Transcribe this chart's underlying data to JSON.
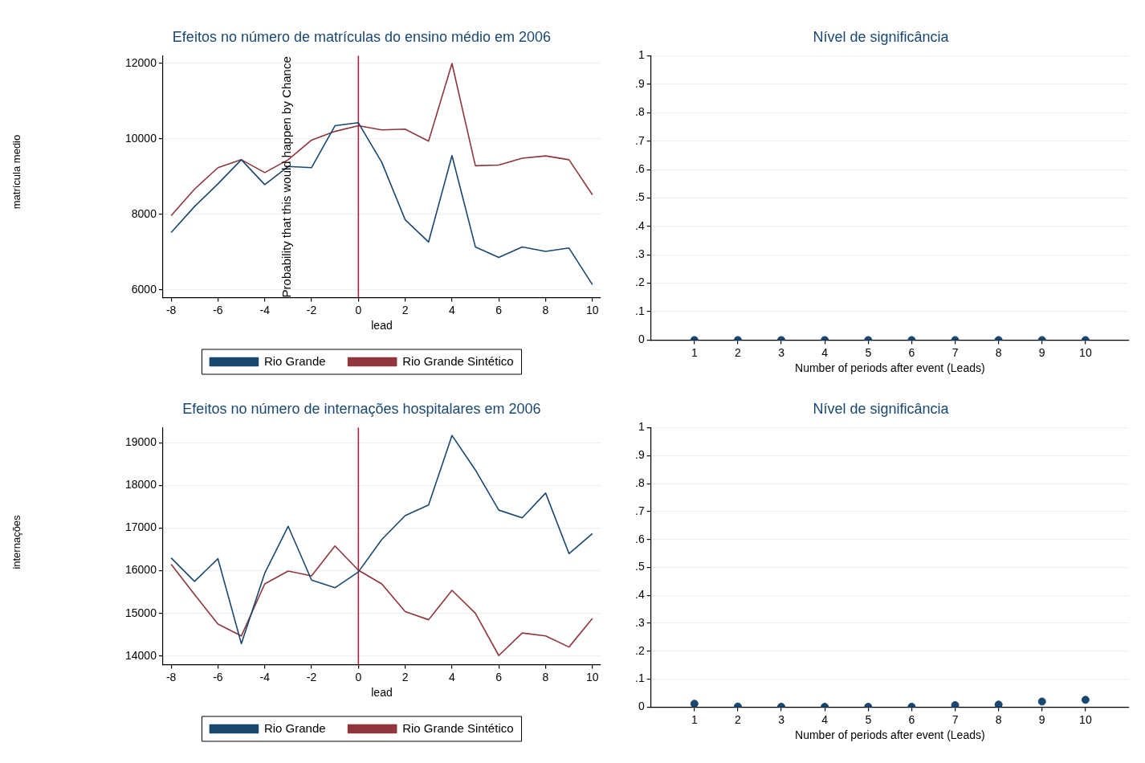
{
  "chart_data": [
    {
      "type": "line",
      "title": "Efeitos no número de matrículas do ensino médio em 2006",
      "xlabel": "lead",
      "ylabel": "matrícula medio",
      "x": [
        -8,
        -7,
        -6,
        -5,
        -4,
        -3,
        -2,
        -1,
        0,
        1,
        2,
        3,
        4,
        5,
        6,
        7,
        8,
        9,
        10
      ],
      "series": [
        {
          "name": "Rio Grande",
          "color": "#1a476f",
          "values": [
            7520,
            8210,
            8810,
            9450,
            8790,
            9270,
            9240,
            10350,
            10430,
            9380,
            7860,
            7270,
            9560,
            7140,
            6860,
            7140,
            7020,
            7110,
            6140
          ]
        },
        {
          "name": "Rio Grande Sintético",
          "color": "#90353b",
          "values": [
            7970,
            8670,
            9240,
            9450,
            9110,
            9450,
            9970,
            10200,
            10350,
            10240,
            10260,
            9940,
            12000,
            9290,
            9310,
            9490,
            9550,
            9450,
            8520
          ]
        }
      ],
      "xlim": [
        -8.35,
        10.35
      ],
      "xticks": [
        -8,
        -6,
        -4,
        -2,
        0,
        2,
        4,
        6,
        8,
        10
      ],
      "ylim": [
        5800,
        12200
      ],
      "yticks": [
        6000,
        8000,
        10000,
        12000
      ],
      "grid": "y",
      "legend": "bottom",
      "marker": "none",
      "ref_lines": [
        {
          "axis": "x",
          "value": 0,
          "color": "#c8102e"
        }
      ],
      "annotations": [
        "Probability that this would happen by Chance"
      ]
    },
    {
      "type": "scatter",
      "title": "Nível de significância",
      "xlabel": "Number of periods after event (Leads)",
      "x": [
        1,
        2,
        3,
        4,
        5,
        6,
        7,
        8,
        9,
        10
      ],
      "series": [
        {
          "color": "#1a476f",
          "values": [
            0,
            0,
            0,
            0,
            0,
            0,
            0,
            0,
            0,
            0
          ]
        }
      ],
      "xlim": [
        0,
        11
      ],
      "xticks": [
        1,
        2,
        3,
        4,
        5,
        6,
        7,
        8,
        9,
        10
      ],
      "ylim": [
        0,
        1
      ],
      "yticks": [
        {
          "value": 0,
          "label": "0"
        },
        {
          "value": 0.1,
          "label": ".1"
        },
        {
          "value": 0.2,
          "label": ".2"
        },
        {
          "value": 0.3,
          "label": ".3"
        },
        {
          "value": 0.4,
          "label": ".4"
        },
        {
          "value": 0.5,
          "label": ".5"
        },
        {
          "value": 0.6,
          "label": ".6"
        },
        {
          "value": 0.7,
          "label": ".7"
        },
        {
          "value": 0.8,
          "label": ".8"
        },
        {
          "value": 0.9,
          "label": ".9"
        },
        {
          "value": 1,
          "label": "1"
        }
      ],
      "grid": "y",
      "marker": "circle"
    },
    {
      "type": "line",
      "title": "Efeitos no número de internações hospitalares em 2006",
      "xlabel": "lead",
      "ylabel": "internações",
      "x": [
        -8,
        -7,
        -6,
        -5,
        -4,
        -3,
        -2,
        -1,
        0,
        1,
        2,
        3,
        4,
        5,
        6,
        7,
        8,
        9,
        10
      ],
      "series": [
        {
          "name": "Rio Grande",
          "color": "#1a476f",
          "values": [
            16300,
            15750,
            16280,
            14290,
            15940,
            17040,
            15780,
            15600,
            15970,
            16730,
            17290,
            17540,
            19170,
            18360,
            17420,
            17240,
            17820,
            16400,
            16870
          ]
        },
        {
          "name": "Rio Grande Sintético",
          "color": "#90353b",
          "values": [
            16150,
            15440,
            14750,
            14470,
            15690,
            15990,
            15880,
            16580,
            16010,
            15690,
            15040,
            14850,
            15540,
            15000,
            14010,
            14540,
            14470,
            14210,
            14880
          ]
        }
      ],
      "xlim": [
        -8.35,
        10.35
      ],
      "xticks": [
        -8,
        -6,
        -4,
        -2,
        0,
        2,
        4,
        6,
        8,
        10
      ],
      "ylim": [
        13800,
        19350
      ],
      "yticks": [
        14000,
        15000,
        16000,
        17000,
        18000,
        19000
      ],
      "grid": "y",
      "legend": "bottom",
      "marker": "none",
      "ref_lines": [
        {
          "axis": "x",
          "value": 0,
          "color": "#c8102e"
        }
      ]
    },
    {
      "type": "scatter",
      "title": "Nível de significância",
      "xlabel": "Number of periods after event (Leads)",
      "x": [
        1,
        2,
        3,
        4,
        5,
        6,
        7,
        8,
        9,
        10
      ],
      "series": [
        {
          "color": "#1a476f",
          "values": [
            0.012,
            0.002,
            0.001,
            0.001,
            0.001,
            0.001,
            0.007,
            0.009,
            0.02,
            0.026
          ]
        }
      ],
      "xlim": [
        0,
        11
      ],
      "xticks": [
        1,
        2,
        3,
        4,
        5,
        6,
        7,
        8,
        9,
        10
      ],
      "ylim": [
        0,
        1
      ],
      "yticks": [
        {
          "value": 0,
          "label": "0"
        },
        {
          "value": 0.1,
          "label": ".1"
        },
        {
          "value": 0.2,
          "label": ".2"
        },
        {
          "value": 0.3,
          "label": ".3"
        },
        {
          "value": 0.4,
          "label": ".4"
        },
        {
          "value": 0.5,
          "label": ".5"
        },
        {
          "value": 0.6,
          "label": ".6"
        },
        {
          "value": 0.7,
          "label": ".7"
        },
        {
          "value": 0.8,
          "label": ".8"
        },
        {
          "value": 0.9,
          "label": ".9"
        },
        {
          "value": 1,
          "label": "1"
        }
      ],
      "grid": "y",
      "marker": "circle"
    }
  ]
}
